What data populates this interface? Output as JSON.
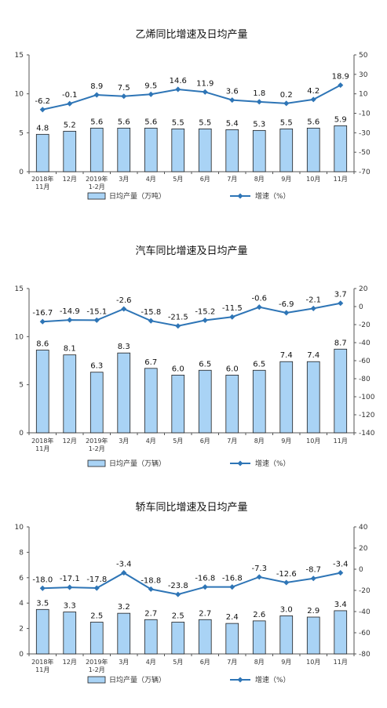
{
  "chart_data": [
    {
      "type": "bar",
      "title": "乙烯同比增速及日均产量",
      "categories": [
        [
          "2018年",
          "11月"
        ],
        [
          "12月"
        ],
        [
          "2019年",
          "1-2月"
        ],
        [
          "3月"
        ],
        [
          "4月"
        ],
        [
          "5月"
        ],
        [
          "6月"
        ],
        [
          "7月"
        ],
        [
          "8月"
        ],
        [
          "9月"
        ],
        [
          "10月"
        ],
        [
          "11月"
        ]
      ],
      "series": [
        {
          "name": "日均产量（万吨）",
          "type": "bar",
          "axis": "left",
          "values": [
            4.8,
            5.2,
            5.6,
            5.6,
            5.6,
            5.5,
            5.5,
            5.4,
            5.3,
            5.5,
            5.6,
            5.9
          ]
        },
        {
          "name": "增速（%）",
          "type": "line",
          "axis": "right",
          "values": [
            -6.2,
            -0.1,
            8.9,
            7.5,
            9.5,
            14.6,
            11.9,
            3.6,
            1.8,
            0.2,
            4.2,
            18.9
          ]
        }
      ],
      "ylim": [
        0,
        15
      ],
      "yticks": [
        0,
        5,
        10,
        15
      ],
      "y2lim": [
        -70,
        50
      ],
      "y2ticks": [
        -70,
        -50,
        -30,
        -10,
        10,
        30,
        50
      ],
      "legend": "bottom"
    },
    {
      "type": "bar",
      "title": "汽车同比增速及日均产量",
      "categories": [
        [
          "2018年",
          "11月"
        ],
        [
          "12月"
        ],
        [
          "2019年",
          "1-2月"
        ],
        [
          "3月"
        ],
        [
          "4月"
        ],
        [
          "5月"
        ],
        [
          "6月"
        ],
        [
          "7月"
        ],
        [
          "8月"
        ],
        [
          "9月"
        ],
        [
          "10月"
        ],
        [
          "11月"
        ]
      ],
      "series": [
        {
          "name": "日均产量（万辆）",
          "type": "bar",
          "axis": "left",
          "values": [
            8.6,
            8.1,
            6.3,
            8.3,
            6.7,
            6.0,
            6.5,
            6.0,
            6.5,
            7.4,
            7.4,
            8.7
          ]
        },
        {
          "name": "增速（%）",
          "type": "line",
          "axis": "right",
          "values": [
            -16.7,
            -14.9,
            -15.1,
            -2.6,
            -15.8,
            -21.5,
            -15.2,
            -11.5,
            -0.6,
            -6.9,
            -2.1,
            3.7
          ]
        }
      ],
      "ylim": [
        0,
        15
      ],
      "yticks": [
        0,
        5,
        10,
        15
      ],
      "y2lim": [
        -140,
        20
      ],
      "y2ticks": [
        -140,
        -120,
        -100,
        -80,
        -60,
        -40,
        -20,
        0,
        20
      ],
      "legend": "bottom"
    },
    {
      "type": "bar",
      "title": "轿车同比增速及日均产量",
      "categories": [
        [
          "2018年",
          "11月"
        ],
        [
          "12月"
        ],
        [
          "2019年",
          "1-2月"
        ],
        [
          "3月"
        ],
        [
          "4月"
        ],
        [
          "5月"
        ],
        [
          "6月"
        ],
        [
          "7月"
        ],
        [
          "8月"
        ],
        [
          "9月"
        ],
        [
          "10月"
        ],
        [
          "11月"
        ]
      ],
      "series": [
        {
          "name": "日均产量（万辆）",
          "type": "bar",
          "axis": "left",
          "values": [
            3.5,
            3.3,
            2.5,
            3.2,
            2.7,
            2.5,
            2.7,
            2.4,
            2.6,
            3.0,
            2.9,
            3.4
          ]
        },
        {
          "name": "增速（%）",
          "type": "line",
          "axis": "right",
          "values": [
            -18.0,
            -17.1,
            -17.8,
            -3.4,
            -18.8,
            -23.8,
            -16.8,
            -16.8,
            -7.3,
            -12.6,
            -8.7,
            -3.4
          ]
        }
      ],
      "ylim": [
        0,
        10
      ],
      "yticks": [
        0,
        2,
        4,
        6,
        8,
        10
      ],
      "y2lim": [
        -80,
        40
      ],
      "y2ticks": [
        -80,
        -60,
        -40,
        -20,
        0,
        20,
        40
      ],
      "legend": "bottom"
    }
  ],
  "colors": {
    "bar_fill": "#a9d3f5",
    "bar_stroke": "#1f1f1f",
    "line": "#2e75b6",
    "axis": "#555555"
  }
}
